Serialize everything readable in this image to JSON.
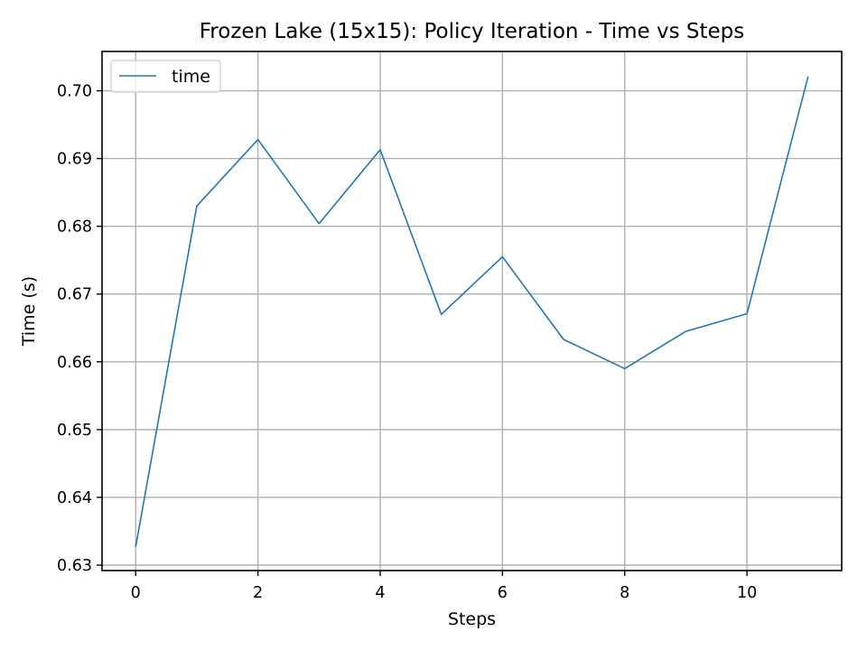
{
  "chart_data": {
    "type": "line",
    "title": "Frozen Lake (15x15): Policy Iteration - Time vs Steps",
    "xlabel": "Steps",
    "ylabel": "Time (s)",
    "xlim": [
      -0.55,
      11.55
    ],
    "ylim": [
      0.6292,
      0.7058
    ],
    "xticks": [
      0,
      2,
      4,
      6,
      8,
      10
    ],
    "yticks": [
      0.63,
      0.64,
      0.65,
      0.66,
      0.67,
      0.68,
      0.69,
      0.7
    ],
    "ytick_labels": [
      "0.63",
      "0.64",
      "0.65",
      "0.66",
      "0.67",
      "0.68",
      "0.69",
      "0.70"
    ],
    "grid": true,
    "legend_position": "upper-left",
    "x": [
      0,
      1,
      2,
      3,
      4,
      5,
      6,
      7,
      8,
      9,
      10,
      11
    ],
    "series": [
      {
        "name": "time",
        "color": "#1f77b4",
        "values": [
          0.6327,
          0.683,
          0.6928,
          0.6804,
          0.6913,
          0.667,
          0.6755,
          0.6633,
          0.659,
          0.6645,
          0.6671,
          0.7021
        ]
      }
    ]
  }
}
